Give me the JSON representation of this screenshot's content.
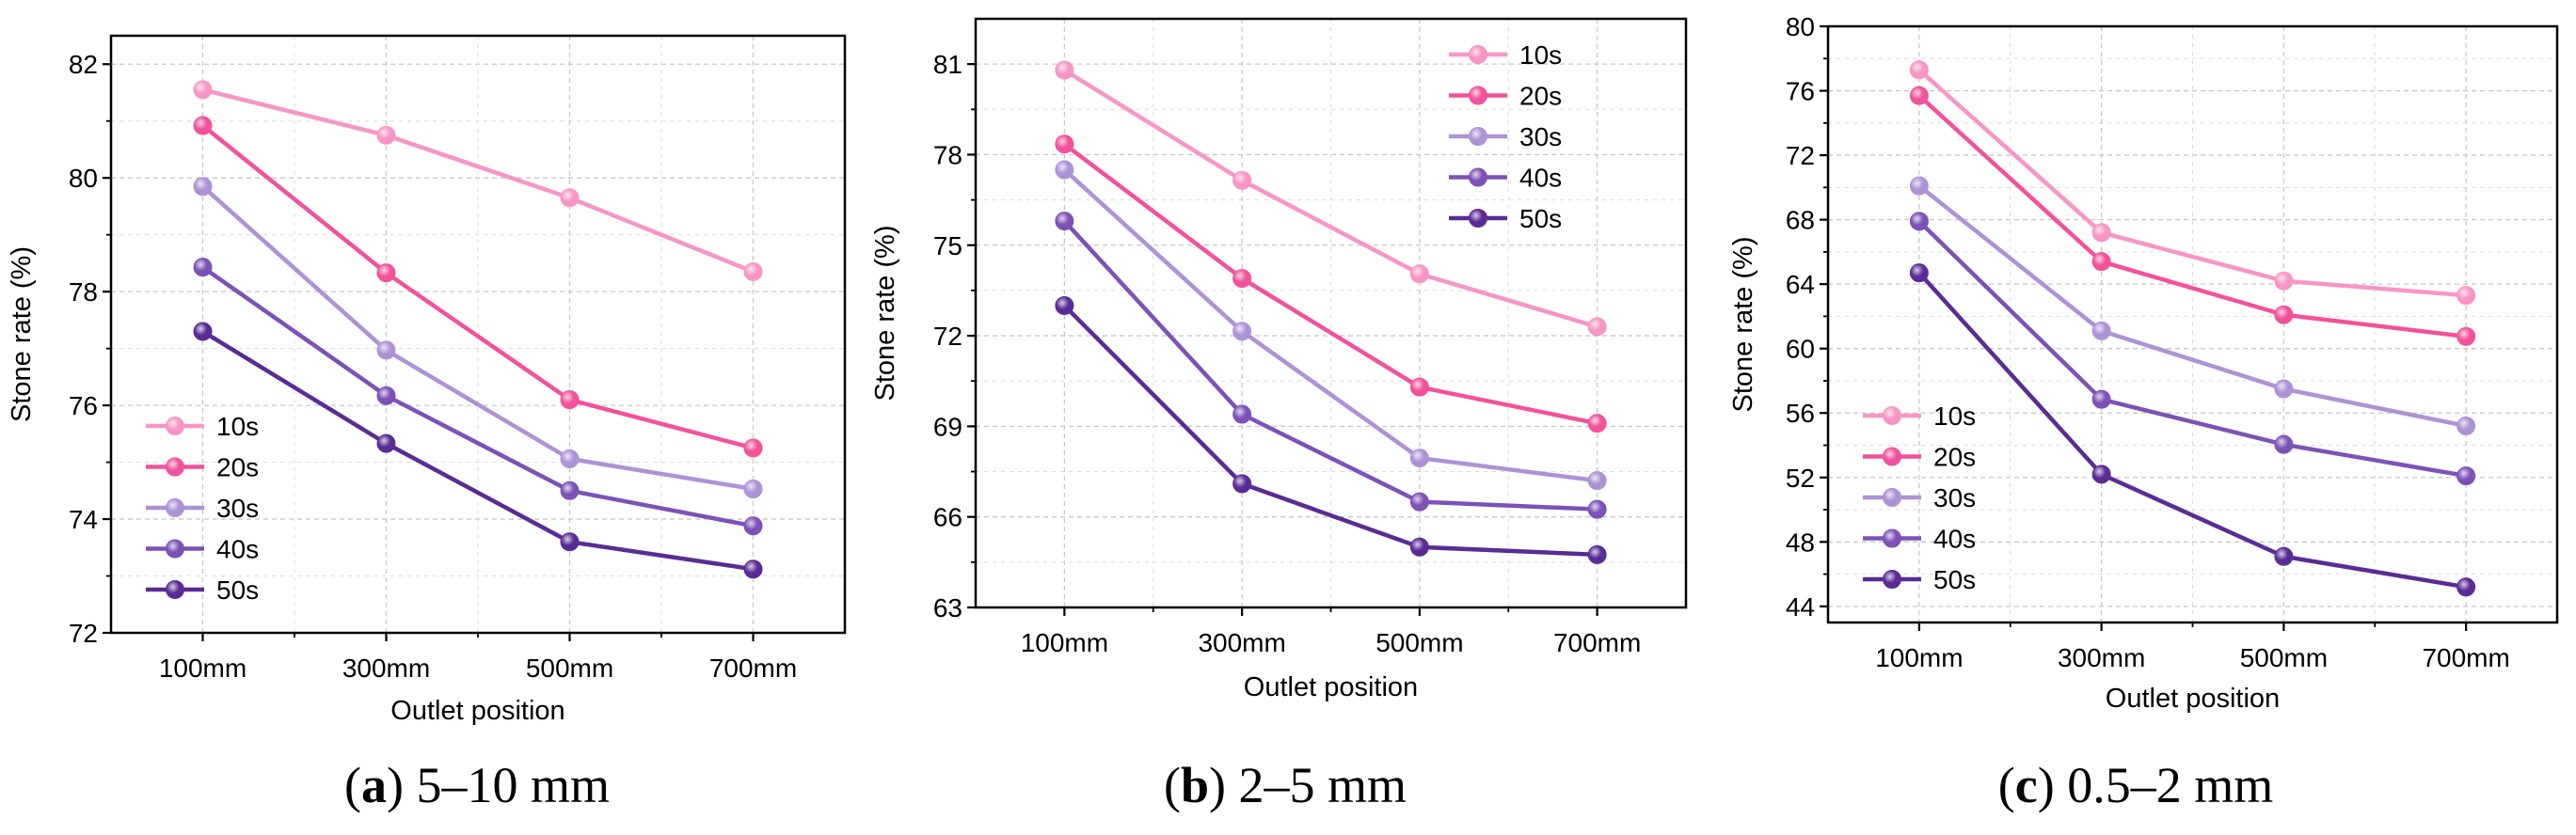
{
  "chart_data": [
    {
      "type": "line",
      "caption_letter": "a",
      "caption_text": "5–10 mm",
      "xlabel": "Outlet position",
      "ylabel": "Stone rate (%)",
      "categories": [
        "100mm",
        "300mm",
        "500mm",
        "700mm"
      ],
      "ylim": [
        72,
        82.5
      ],
      "yticks": [
        72,
        74,
        76,
        78,
        80,
        82
      ],
      "legend_position": "bottom-left",
      "grid": true,
      "series": [
        {
          "name": "10s",
          "color": "#F795C6",
          "values": [
            81.55,
            80.75,
            79.65,
            78.35
          ]
        },
        {
          "name": "20s",
          "color": "#F2519C",
          "values": [
            80.92,
            78.33,
            76.1,
            75.25
          ]
        },
        {
          "name": "30s",
          "color": "#AE92D6",
          "values": [
            79.85,
            76.97,
            75.06,
            74.53
          ]
        },
        {
          "name": "40s",
          "color": "#7D51B7",
          "values": [
            78.43,
            76.17,
            74.5,
            73.88
          ]
        },
        {
          "name": "50s",
          "color": "#5B2B95",
          "values": [
            77.3,
            75.33,
            73.6,
            73.12
          ]
        }
      ]
    },
    {
      "type": "line",
      "caption_letter": "b",
      "caption_text": "2–5 mm",
      "xlabel": "Outlet position",
      "ylabel": "Stone rate (%)",
      "categories": [
        "100mm",
        "300mm",
        "500mm",
        "700mm"
      ],
      "ylim": [
        63,
        82.5
      ],
      "yticks": [
        63,
        66,
        69,
        72,
        75,
        78,
        81
      ],
      "legend_position": "top-right",
      "grid": true,
      "series": [
        {
          "name": "10s",
          "color": "#F795C6",
          "values": [
            80.8,
            77.15,
            74.05,
            72.3
          ]
        },
        {
          "name": "20s",
          "color": "#F2519C",
          "values": [
            78.35,
            73.9,
            70.3,
            69.1
          ]
        },
        {
          "name": "30s",
          "color": "#AE92D6",
          "values": [
            77.5,
            72.15,
            67.95,
            67.2
          ]
        },
        {
          "name": "40s",
          "color": "#7D51B7",
          "values": [
            75.8,
            69.4,
            66.5,
            66.25
          ]
        },
        {
          "name": "50s",
          "color": "#5B2B95",
          "values": [
            73.0,
            67.1,
            65.0,
            64.75
          ]
        }
      ]
    },
    {
      "type": "line",
      "caption_letter": "c",
      "caption_text": "0.5–2 mm",
      "xlabel": "Outlet position",
      "ylabel": "Stone rate (%)",
      "categories": [
        "100mm",
        "300mm",
        "500mm",
        "700mm"
      ],
      "ylim": [
        43,
        80
      ],
      "yticks": [
        44,
        48,
        52,
        56,
        60,
        64,
        68,
        72,
        76,
        80
      ],
      "legend_position": "bottom-left",
      "grid": true,
      "series": [
        {
          "name": "10s",
          "color": "#F795C6",
          "values": [
            77.3,
            67.2,
            64.2,
            63.3
          ]
        },
        {
          "name": "20s",
          "color": "#F2519C",
          "values": [
            75.7,
            65.4,
            62.1,
            60.75
          ]
        },
        {
          "name": "30s",
          "color": "#AE92D6",
          "values": [
            70.1,
            61.1,
            57.5,
            55.2
          ]
        },
        {
          "name": "40s",
          "color": "#7D51B7",
          "values": [
            67.9,
            56.85,
            54.05,
            52.1
          ]
        },
        {
          "name": "50s",
          "color": "#5B2B95",
          "values": [
            64.7,
            52.2,
            47.1,
            45.2
          ]
        }
      ]
    }
  ]
}
